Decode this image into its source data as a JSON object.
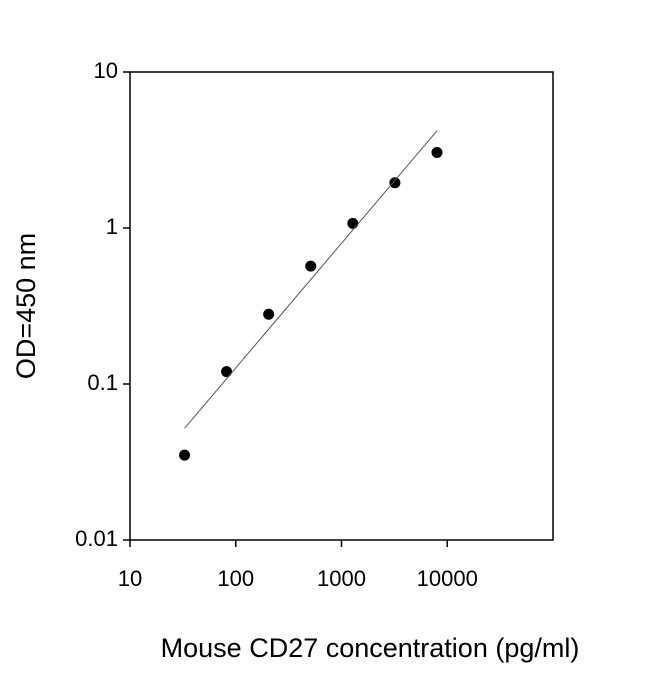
{
  "chart_data": {
    "type": "scatter",
    "x_label": "Mouse CD27 concentration (pg/ml)",
    "y_label": "OD=450 nm",
    "x_log": true,
    "y_log": true,
    "xlim": [
      10,
      100000
    ],
    "ylim": [
      0.01,
      10
    ],
    "xticks": [
      10,
      100,
      1000,
      10000
    ],
    "yticks": [
      0.01,
      0.1,
      1,
      10
    ],
    "series": [
      {
        "mode": "markers",
        "color": "#000000",
        "x": [
          32.8,
          81.9,
          204.8,
          512,
          1280,
          3200,
          8000
        ],
        "values": [
          0.035,
          0.12,
          0.28,
          0.57,
          1.07,
          1.95,
          3.05
        ]
      },
      {
        "mode": "line",
        "color": "#555555",
        "x": [
          32.8,
          8000
        ],
        "values": [
          0.052,
          4.2
        ]
      }
    ]
  }
}
